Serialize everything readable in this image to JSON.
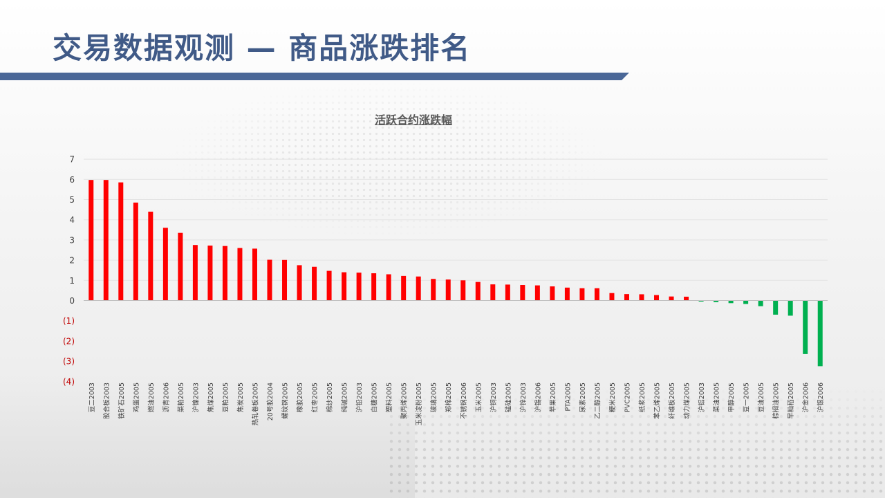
{
  "page": {
    "title": "交易数据观测 — 商品涨跌排名"
  },
  "chart_data": {
    "type": "bar",
    "title": "活跃合约涨跌幅",
    "xlabel": "",
    "ylabel": "",
    "ylim": [
      -4,
      7
    ],
    "yticks": [
      {
        "value": 7,
        "label": "7"
      },
      {
        "value": 6,
        "label": "6"
      },
      {
        "value": 5,
        "label": "5"
      },
      {
        "value": 4,
        "label": "4"
      },
      {
        "value": 3,
        "label": "3"
      },
      {
        "value": 2,
        "label": "2"
      },
      {
        "value": 1,
        "label": "1"
      },
      {
        "value": 0,
        "label": "0"
      },
      {
        "value": -1,
        "label": "(1)"
      },
      {
        "value": -2,
        "label": "(2)"
      },
      {
        "value": -3,
        "label": "(3)"
      },
      {
        "value": -4,
        "label": "(4)"
      }
    ],
    "grid": true,
    "legend": "none",
    "colors": {
      "positive": "#ff0000",
      "negative": "#00b050",
      "negative_tick": "#c00000",
      "axis_text": "#404040"
    },
    "categories": [
      "豆二2003",
      "胶合板2003",
      "铁矿石2005",
      "鸡蛋2005",
      "燃油2005",
      "沥青2006",
      "菜粕2005",
      "沪镍2003",
      "焦煤2005",
      "豆粕2005",
      "焦炭2005",
      "热轧卷板2005",
      "20号胶2004",
      "螺纹钢2005",
      "橡胶2005",
      "红枣2005",
      "棉纱2005",
      "纯碱2005",
      "沪铅2003",
      "白糖2005",
      "塑料2005",
      "聚丙烯2005",
      "玉米淀粉2005",
      "玻璃2005",
      "郑棉2005",
      "不锈钢2006",
      "玉米2005",
      "沪铜2003",
      "锰硅2005",
      "沪锌2003",
      "沪锡2006",
      "苹果2005",
      "PTA2005",
      "尿素2005",
      "乙二醇2005",
      "粳米2005",
      "PVC2005",
      "纸浆2005",
      "苯乙烯2005",
      "纤维板2005",
      "动力煤2005",
      "沪铝2003",
      "菜油2005",
      "甲醇2005",
      "豆一2005",
      "豆油2005",
      "棕榈油2005",
      "早籼稻2005",
      "沪金2006",
      "沪银2006"
    ],
    "values": [
      5.97,
      5.97,
      5.85,
      4.85,
      4.4,
      3.6,
      3.35,
      2.75,
      2.72,
      2.7,
      2.6,
      2.57,
      2.02,
      2.01,
      1.75,
      1.67,
      1.47,
      1.4,
      1.38,
      1.35,
      1.3,
      1.22,
      1.19,
      1.07,
      1.04,
      1.0,
      0.92,
      0.8,
      0.79,
      0.77,
      0.75,
      0.7,
      0.64,
      0.61,
      0.61,
      0.37,
      0.32,
      0.31,
      0.27,
      0.2,
      0.19,
      -0.05,
      -0.08,
      -0.13,
      -0.17,
      -0.28,
      -0.7,
      -0.75,
      -2.65,
      -3.25
    ]
  }
}
